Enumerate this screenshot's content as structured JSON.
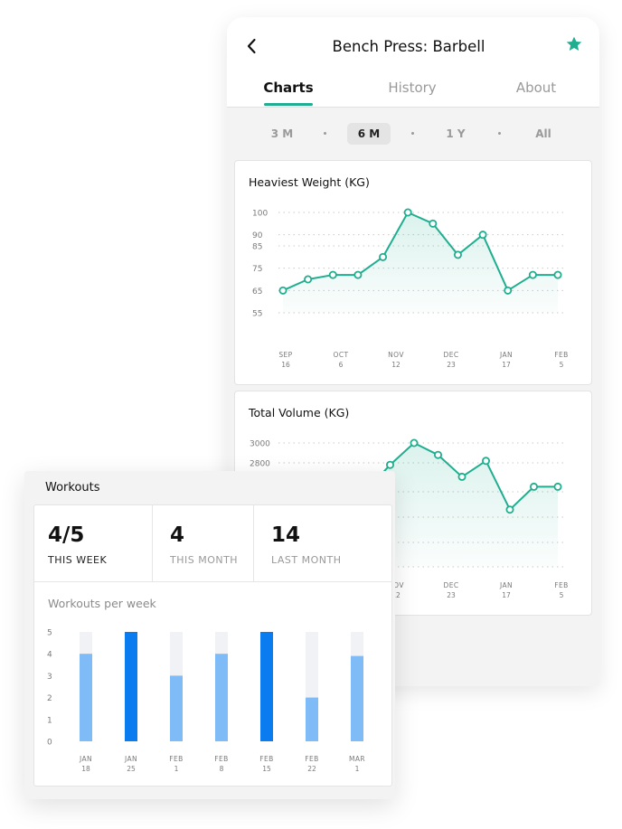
{
  "header": {
    "title": "Bench Press: Barbell",
    "tabs": [
      "Charts",
      "History",
      "About"
    ],
    "active_tab": "Charts",
    "back_icon": "chevron-left-icon",
    "favorite_icon": "star-icon"
  },
  "ranges": {
    "options": [
      "3 M",
      "6 M",
      "1 Y",
      "All"
    ],
    "selected": "6 M"
  },
  "colors": {
    "accent": "#1fae8f",
    "bar_dark": "#0a7cf0",
    "bar_light": "#7fbbf6",
    "bar_track": "#f0f2f5",
    "grid": "#c9c9c9",
    "tick": "#7a7a7a"
  },
  "workouts": {
    "title": "Workouts",
    "stats": [
      {
        "value": "4/5",
        "label": "THIS WEEK"
      },
      {
        "value": "4",
        "label": "THIS MONTH"
      },
      {
        "value": "14",
        "label": "LAST MONTH"
      }
    ],
    "chart_title": "Workouts per week"
  },
  "chart_data": [
    {
      "type": "line",
      "title": "Heaviest Weight (KG)",
      "y_ticks": [
        100,
        90,
        85,
        75,
        65,
        55
      ],
      "ylim": [
        55,
        100
      ],
      "x_ticks": [
        [
          "SEP",
          "16"
        ],
        [
          "OCT",
          "6"
        ],
        [
          "NOV",
          "12"
        ],
        [
          "DEC",
          "23"
        ],
        [
          "JAN",
          "17"
        ],
        [
          "FEB",
          "5"
        ]
      ],
      "values": [
        65,
        70,
        72,
        72,
        80,
        100,
        95,
        81,
        90,
        65,
        72,
        72
      ],
      "grid": true,
      "area_fill": true
    },
    {
      "type": "line",
      "title": "Total Volume (KG)",
      "y_ticks": [
        3000,
        2800
      ],
      "ylim": [
        2000,
        3000
      ],
      "x_ticks": [
        [
          "NOV",
          "12"
        ],
        [
          "DEC",
          "23"
        ],
        [
          "JAN",
          "17"
        ],
        [
          "FEB",
          "5"
        ]
      ],
      "values": [
        2520,
        2780,
        3000,
        2880,
        2660,
        2820,
        2330,
        2560,
        2560
      ],
      "grid": true,
      "area_fill": true
    },
    {
      "type": "bar",
      "title": "Workouts per week",
      "y_ticks": [
        5,
        4,
        3,
        2,
        1,
        0
      ],
      "ylim": [
        0,
        5
      ],
      "categories": [
        [
          "JAN",
          "18"
        ],
        [
          "JAN",
          "25"
        ],
        [
          "FEB",
          "1"
        ],
        [
          "FEB",
          "8"
        ],
        [
          "FEB",
          "15"
        ],
        [
          "FEB",
          "22"
        ],
        [
          "MAR",
          "1"
        ]
      ],
      "values": [
        4,
        5,
        3,
        4,
        5,
        2,
        3.9
      ],
      "highlight": [
        false,
        true,
        false,
        false,
        true,
        false,
        false
      ]
    }
  ]
}
